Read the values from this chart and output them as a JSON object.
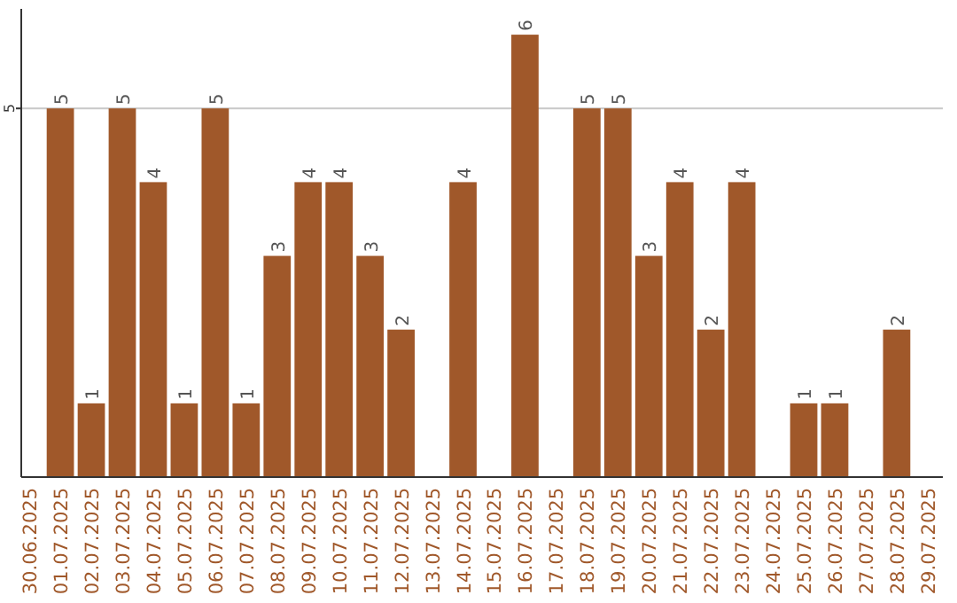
{
  "chart_data": {
    "type": "bar",
    "categories": [
      "30.06.2025",
      "01.07.2025",
      "02.07.2025",
      "03.07.2025",
      "04.07.2025",
      "05.07.2025",
      "06.07.2025",
      "07.07.2025",
      "08.07.2025",
      "09.07.2025",
      "10.07.2025",
      "11.07.2025",
      "12.07.2025",
      "13.07.2025",
      "14.07.2025",
      "15.07.2025",
      "16.07.2025",
      "17.07.2025",
      "18.07.2025",
      "19.07.2025",
      "20.07.2025",
      "21.07.2025",
      "22.07.2025",
      "23.07.2025",
      "24.07.2025",
      "25.07.2025",
      "26.07.2025",
      "27.07.2025",
      "28.07.2025",
      "29.07.2025"
    ],
    "values": [
      null,
      5,
      1,
      5,
      4,
      1,
      5,
      1,
      3,
      4,
      4,
      3,
      2,
      null,
      4,
      null,
      6,
      null,
      5,
      5,
      3,
      4,
      2,
      4,
      null,
      1,
      1,
      null,
      2,
      null
    ],
    "color": "#a0582a",
    "ylim": [
      0,
      6.35
    ],
    "yticks": [
      5
    ],
    "grid": "y",
    "data_labels": true
  }
}
